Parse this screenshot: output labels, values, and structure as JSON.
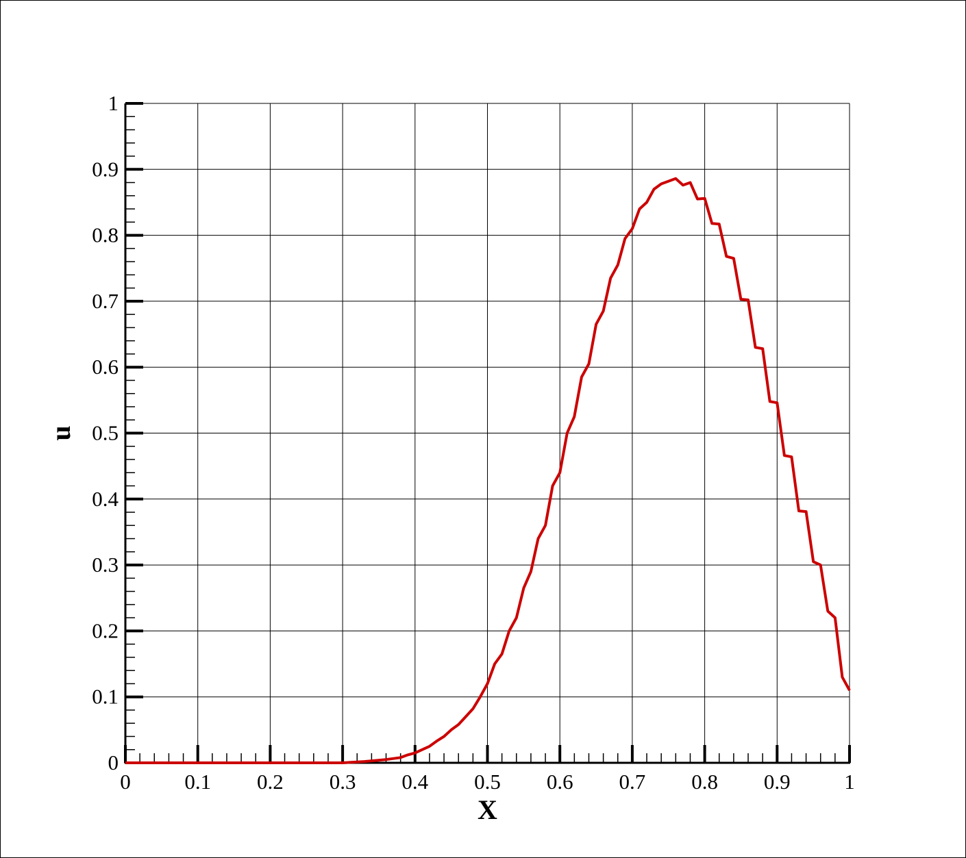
{
  "chart_data": {
    "type": "line",
    "xlabel": "X",
    "ylabel": "u",
    "xlim": [
      0,
      1
    ],
    "ylim": [
      0,
      1
    ],
    "grid": true,
    "x_ticks": [
      "0",
      "0.1",
      "0.2",
      "0.3",
      "0.4",
      "0.5",
      "0.6",
      "0.7",
      "0.8",
      "0.9",
      "1"
    ],
    "y_ticks": [
      "0",
      "0.1",
      "0.2",
      "0.3",
      "0.4",
      "0.5",
      "0.6",
      "0.7",
      "0.8",
      "0.9",
      "1"
    ],
    "line_color": "#cc0000",
    "series": [
      {
        "x": [
          0.0,
          0.1,
          0.2,
          0.3,
          0.33,
          0.36,
          0.38,
          0.39,
          0.4,
          0.41,
          0.42,
          0.43,
          0.44,
          0.45,
          0.46,
          0.47,
          0.48,
          0.49,
          0.5,
          0.51,
          0.52,
          0.53,
          0.54,
          0.55,
          0.56,
          0.57,
          0.58,
          0.59,
          0.6,
          0.61,
          0.62,
          0.63,
          0.64,
          0.65,
          0.66,
          0.67,
          0.68,
          0.69,
          0.7,
          0.71,
          0.72,
          0.73,
          0.74,
          0.75,
          0.76,
          0.77,
          0.78,
          0.79,
          0.8,
          0.81,
          0.82,
          0.83,
          0.84,
          0.85,
          0.86,
          0.87,
          0.88,
          0.89,
          0.9,
          0.91,
          0.92,
          0.93,
          0.94,
          0.95,
          0.96,
          0.97,
          0.98,
          0.99,
          1.0
        ],
        "y": [
          0.0,
          0.0,
          0.0,
          0.0,
          0.002,
          0.005,
          0.008,
          0.012,
          0.015,
          0.02,
          0.025,
          0.033,
          0.04,
          0.05,
          0.058,
          0.07,
          0.082,
          0.1,
          0.12,
          0.15,
          0.165,
          0.2,
          0.22,
          0.265,
          0.29,
          0.34,
          0.36,
          0.42,
          0.44,
          0.5,
          0.525,
          0.585,
          0.605,
          0.665,
          0.685,
          0.735,
          0.755,
          0.795,
          0.81,
          0.84,
          0.85,
          0.87,
          0.878,
          0.882,
          0.886,
          0.876,
          0.88,
          0.855,
          0.856,
          0.818,
          0.817,
          0.768,
          0.765,
          0.703,
          0.702,
          0.63,
          0.628,
          0.548,
          0.546,
          0.466,
          0.464,
          0.382,
          0.381,
          0.305,
          0.3,
          0.23,
          0.22,
          0.13,
          0.11
        ]
      }
    ]
  }
}
